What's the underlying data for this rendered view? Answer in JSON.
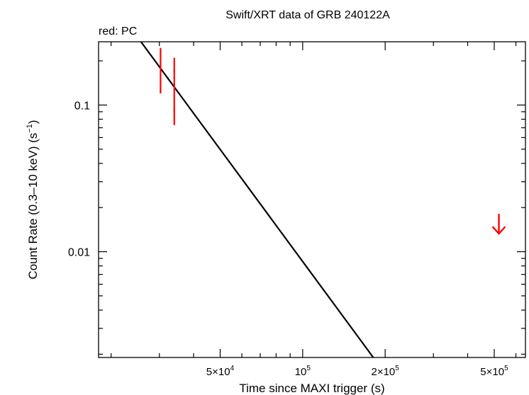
{
  "chart_data": {
    "type": "scatter",
    "title": "Swift/XRT data of GRB 240122A",
    "subtitle": "red: PC",
    "xlabel": "Time since MAXI trigger (s)",
    "ylabel_main": "Count Rate (0.3–10 keV) (s",
    "ylabel_sup": "−1",
    "ylabel_end": ")",
    "x_scale": "log",
    "y_scale": "log",
    "xlim": [
      18000,
      650000
    ],
    "ylim": [
      0.0019,
      0.27
    ],
    "grid": false,
    "x_ticks": [
      {
        "value": 50000,
        "base": "5×10",
        "exp": "4"
      },
      {
        "value": 100000,
        "base": "10",
        "exp": "5"
      },
      {
        "value": 200000,
        "base": "2×10",
        "exp": "5"
      },
      {
        "value": 500000,
        "base": "5×10",
        "exp": "5"
      }
    ],
    "y_ticks": [
      {
        "value": 0.1,
        "label": "0.1"
      },
      {
        "value": 0.01,
        "label": "0.01"
      }
    ],
    "series": [
      {
        "color": "#ff0000",
        "points": [
          {
            "x": 30300,
            "y": 0.16,
            "y_low": 0.12,
            "y_high": 0.245
          },
          {
            "x": 34000,
            "y": 0.17,
            "y_low": 0.108,
            "y_high": 0.21
          },
          {
            "x": 34000,
            "y": 0.092,
            "y_low": 0.073,
            "y_high": 0.108
          }
        ],
        "upper_limits": [
          {
            "x": 520000,
            "y": 0.0155
          }
        ]
      }
    ],
    "model_line": {
      "color": "#000000",
      "points": [
        [
          25700,
          0.27
        ],
        [
          181000,
          0.0019
        ]
      ]
    }
  }
}
